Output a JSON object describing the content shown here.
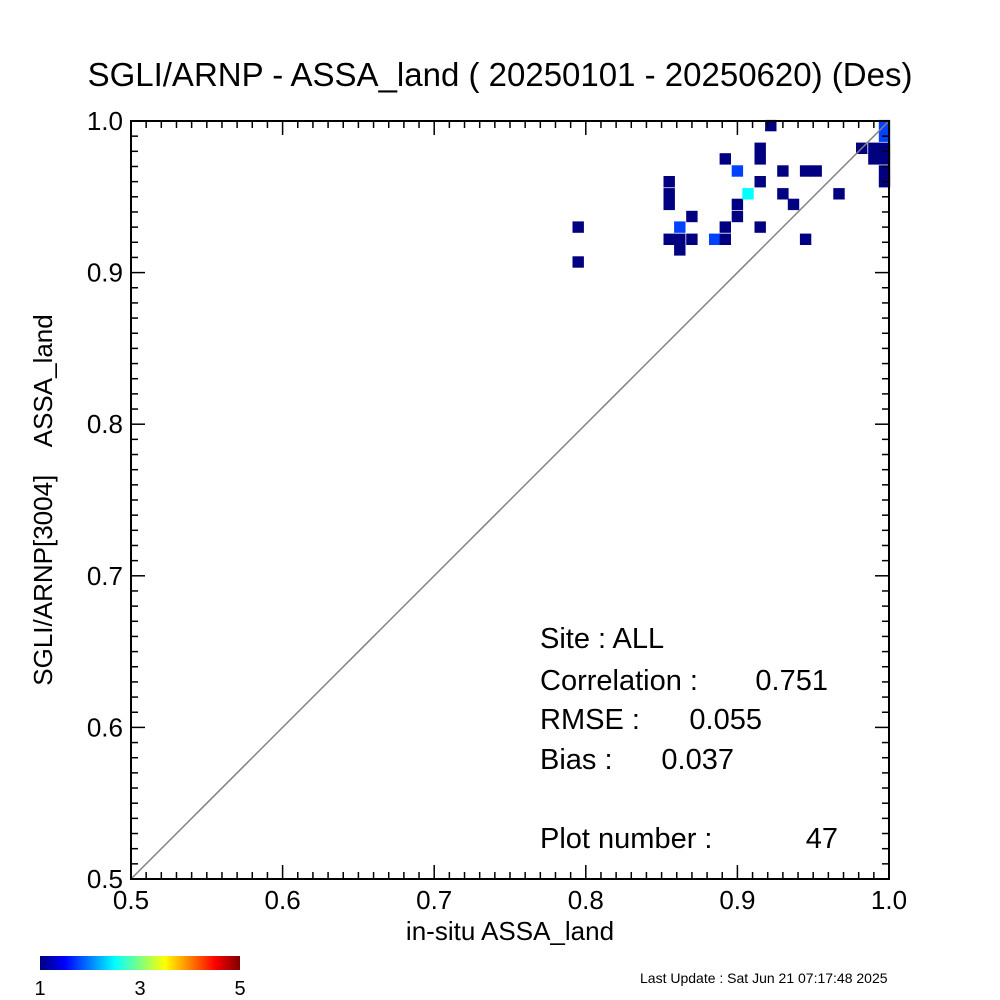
{
  "chart_data": {
    "type": "heatmap",
    "title": "SGLI/ARNP - ASSA_land ( 20250101 - 20250620) (Des)",
    "xlabel": "in-situ ASSA_land",
    "ylabel": "SGLI/ARNP[3004]    ASSA_land",
    "xlim": [
      0.5,
      1.0
    ],
    "ylim": [
      0.5,
      1.0
    ],
    "x_ticks": [
      "0.5",
      "0.6",
      "0.7",
      "0.8",
      "0.9",
      "1.0"
    ],
    "y_ticks": [
      "0.5",
      "0.6",
      "0.7",
      "0.8",
      "0.9",
      "1.0"
    ],
    "reference_line": "1:1",
    "bin_size": 0.0075,
    "cells": [
      {
        "x": 0.795,
        "y": 0.93,
        "count": 1
      },
      {
        "x": 0.795,
        "y": 0.907,
        "count": 1
      },
      {
        "x": 0.855,
        "y": 0.96,
        "count": 1
      },
      {
        "x": 0.855,
        "y": 0.952,
        "count": 1
      },
      {
        "x": 0.855,
        "y": 0.945,
        "count": 1
      },
      {
        "x": 0.855,
        "y": 0.922,
        "count": 1
      },
      {
        "x": 0.862,
        "y": 0.93,
        "count": 2
      },
      {
        "x": 0.862,
        "y": 0.922,
        "count": 1
      },
      {
        "x": 0.862,
        "y": 0.915,
        "count": 1
      },
      {
        "x": 0.87,
        "y": 0.937,
        "count": 1
      },
      {
        "x": 0.87,
        "y": 0.922,
        "count": 1
      },
      {
        "x": 0.885,
        "y": 0.922,
        "count": 2
      },
      {
        "x": 0.892,
        "y": 0.975,
        "count": 1
      },
      {
        "x": 0.892,
        "y": 0.93,
        "count": 1
      },
      {
        "x": 0.892,
        "y": 0.922,
        "count": 1
      },
      {
        "x": 0.9,
        "y": 0.967,
        "count": 2
      },
      {
        "x": 0.9,
        "y": 0.945,
        "count": 1
      },
      {
        "x": 0.9,
        "y": 0.937,
        "count": 1
      },
      {
        "x": 0.907,
        "y": 0.952,
        "count": 3
      },
      {
        "x": 0.915,
        "y": 0.982,
        "count": 1
      },
      {
        "x": 0.915,
        "y": 0.975,
        "count": 1
      },
      {
        "x": 0.915,
        "y": 0.96,
        "count": 1
      },
      {
        "x": 0.915,
        "y": 0.93,
        "count": 1
      },
      {
        "x": 0.922,
        "y": 0.997,
        "count": 1
      },
      {
        "x": 0.93,
        "y": 0.967,
        "count": 1
      },
      {
        "x": 0.93,
        "y": 0.952,
        "count": 1
      },
      {
        "x": 0.937,
        "y": 0.945,
        "count": 1
      },
      {
        "x": 0.945,
        "y": 0.967,
        "count": 1
      },
      {
        "x": 0.945,
        "y": 0.922,
        "count": 1
      },
      {
        "x": 0.952,
        "y": 0.967,
        "count": 1
      },
      {
        "x": 0.967,
        "y": 0.952,
        "count": 1
      },
      {
        "x": 0.982,
        "y": 0.982,
        "count": 1
      },
      {
        "x": 0.99,
        "y": 0.982,
        "count": 1
      },
      {
        "x": 0.99,
        "y": 0.975,
        "count": 1
      },
      {
        "x": 0.997,
        "y": 0.997,
        "count": 2
      },
      {
        "x": 0.997,
        "y": 0.99,
        "count": 2
      },
      {
        "x": 0.997,
        "y": 0.982,
        "count": 1
      },
      {
        "x": 0.997,
        "y": 0.975,
        "count": 1
      },
      {
        "x": 0.997,
        "y": 0.967,
        "count": 1
      },
      {
        "x": 0.997,
        "y": 0.96,
        "count": 1
      }
    ],
    "colorbar": {
      "min_label": "1",
      "mid_label": "3",
      "max_label": "5",
      "min": 1,
      "max": 5
    },
    "stats": {
      "site_label": "Site : ALL",
      "correlation_label": "Correlation :",
      "correlation_value": "0.751",
      "rmse_label": "RMSE :",
      "rmse_value": "0.055",
      "bias_label": "Bias :",
      "bias_value": "0.037",
      "plot_number_label": "Plot number :",
      "plot_number_value": "47"
    }
  },
  "footer": {
    "last_update": "Last Update : Sat Jun 21 07:17:48 2025"
  }
}
